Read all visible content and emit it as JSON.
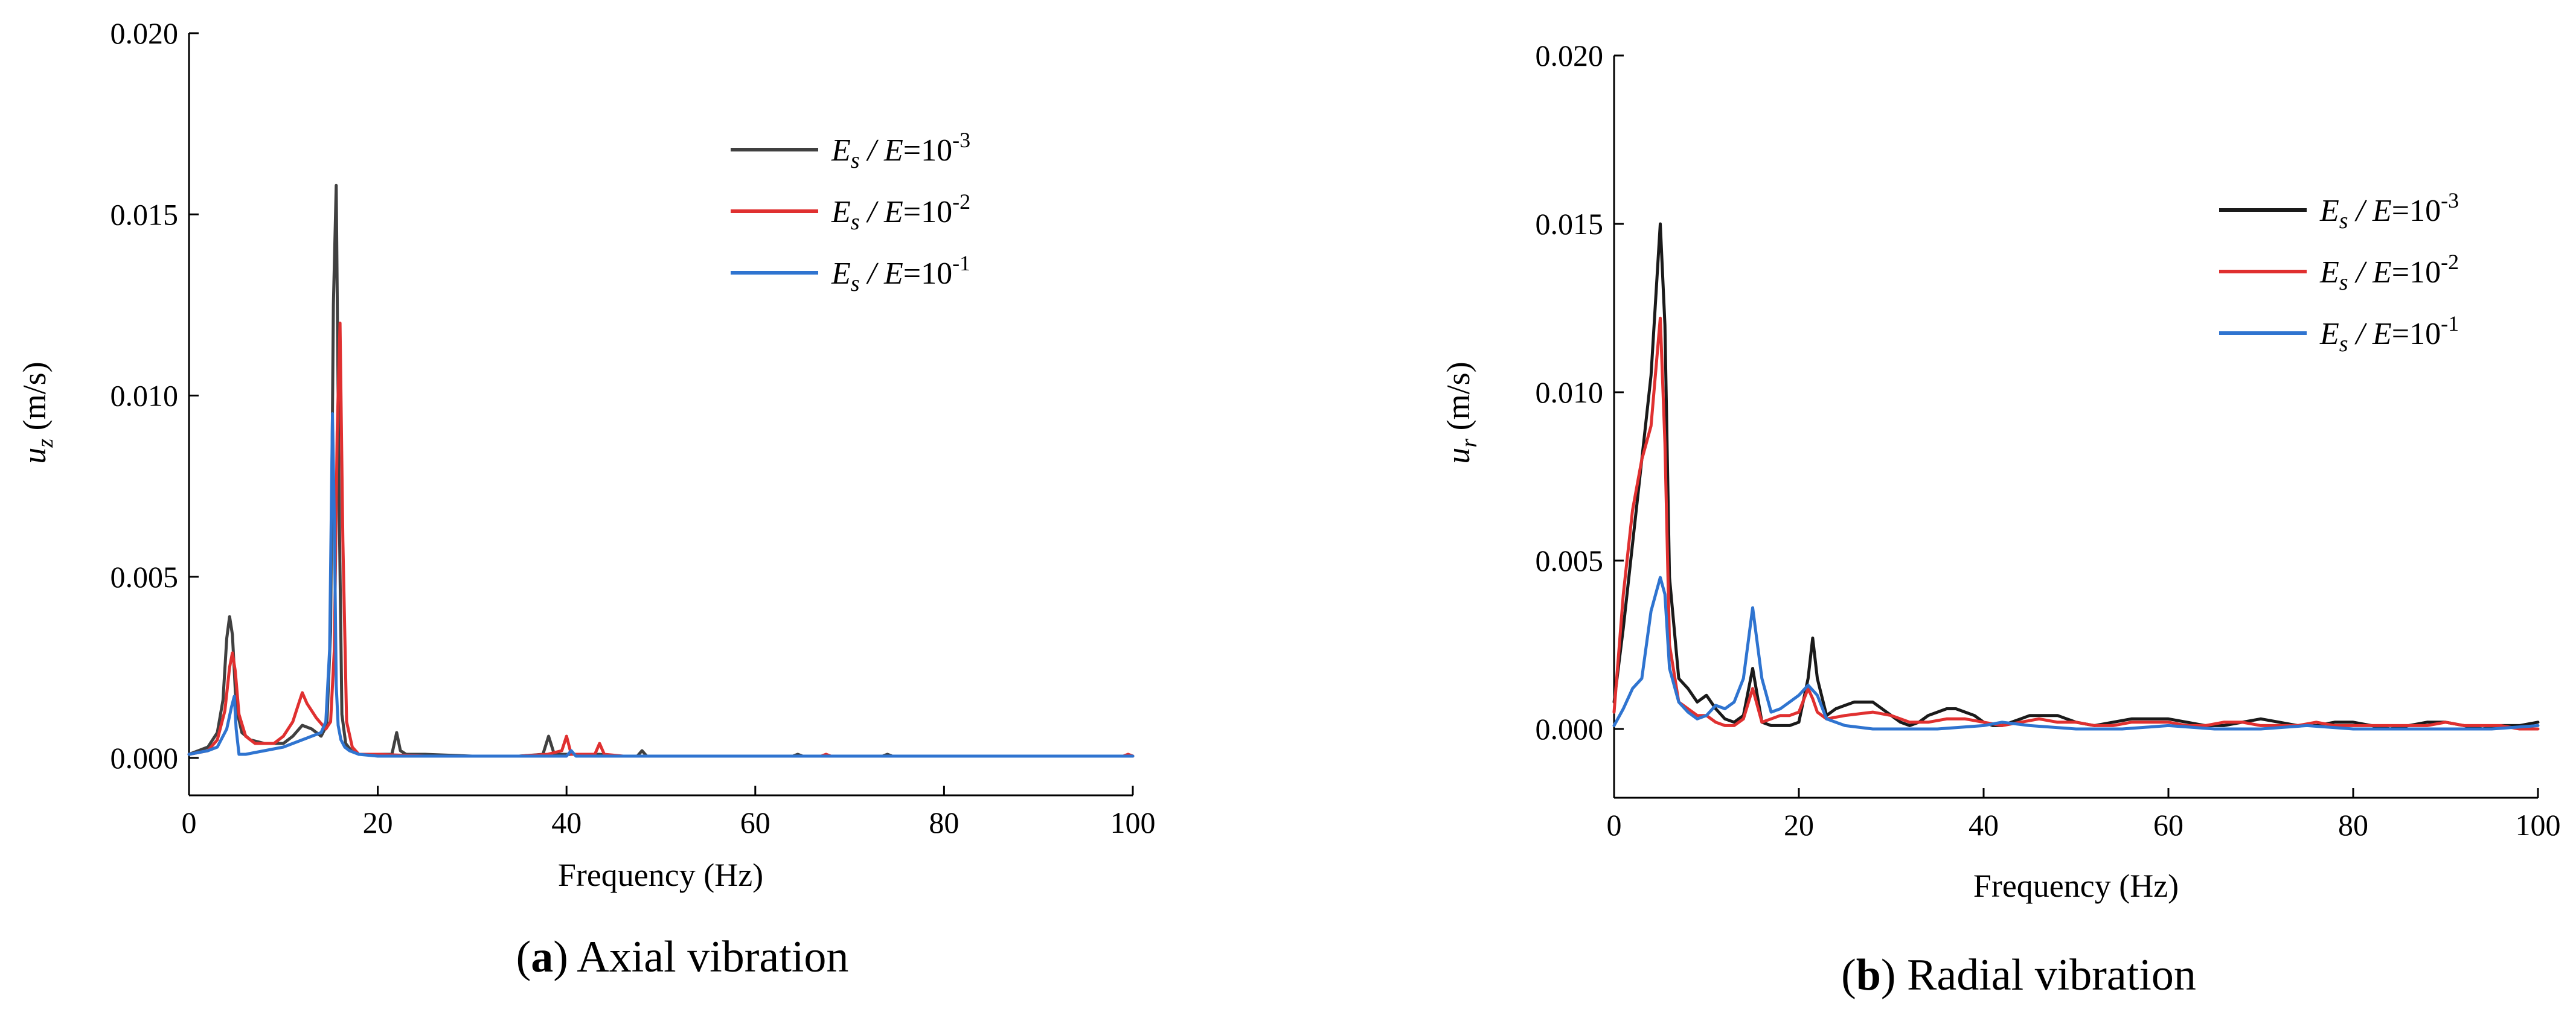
{
  "colors": {
    "black": "#1a1a1a",
    "dark": "#404040",
    "red": "#e03030",
    "blue": "#2f74d0"
  },
  "chart_data": [
    {
      "id": "a",
      "type": "line",
      "xlabel": "Frequency (Hz)",
      "ylabel": "u",
      "ylabel_sub": "z",
      "ylabel_unit": " (m/s)",
      "xlim": [
        0,
        100
      ],
      "ylim": [
        -0.0005,
        0.02
      ],
      "xticks": [
        0,
        20,
        40,
        60,
        80,
        100
      ],
      "yticks": [
        0.0,
        0.005,
        0.01,
        0.015,
        0.02
      ],
      "ytick_labels": [
        "0.000",
        "0.005",
        "0.010",
        "0.015",
        "0.020"
      ],
      "xtick_labels": [
        "0",
        "20",
        "40",
        "60",
        "80",
        "100"
      ],
      "legend_position": "top-right",
      "caption_letter": "a",
      "caption_text": " Axial vibration",
      "series": [
        {
          "name": "E_s / E=10^-3",
          "color_key": "dark",
          "legend_parts": {
            "E": "E",
            "sub": "s",
            "mid": " / ",
            "E2": "E",
            "eq": "=10",
            "exp": "-3"
          },
          "x": [
            0,
            2,
            3,
            3.6,
            4.0,
            4.3,
            4.6,
            5.0,
            5.6,
            6.5,
            8,
            10,
            11,
            12,
            13,
            14,
            14.6,
            15.0,
            15.3,
            15.6,
            15.9,
            16.2,
            16.6,
            17.2,
            18,
            19,
            20,
            21.5,
            22,
            22.4,
            23,
            25,
            30,
            35,
            37.5,
            38.1,
            38.7,
            39.5,
            40.5,
            41.5,
            43.5,
            45,
            47.5,
            48,
            48.5,
            50,
            55,
            60,
            64,
            64.5,
            65,
            70,
            73.5,
            74,
            74.5,
            80,
            90,
            95,
            100
          ],
          "y": [
            0.0001,
            0.0003,
            0.0007,
            0.0016,
            0.0033,
            0.0039,
            0.0034,
            0.0014,
            0.0007,
            0.0005,
            0.0004,
            0.0004,
            0.0006,
            0.0009,
            0.0008,
            0.0006,
            0.0009,
            0.0035,
            0.0125,
            0.0158,
            0.0072,
            0.0012,
            0.0004,
            0.0002,
            0.0001,
            0.0001,
            0.0001,
            0.0001,
            0.0007,
            0.0002,
            0.0001,
            0.0001,
            5e-05,
            5e-05,
            0.0001,
            0.0006,
            0.0001,
            0.0001,
            0.0001,
            0.0001,
            0.0001,
            5e-05,
            5e-05,
            0.0002,
            5e-05,
            5e-05,
            5e-05,
            5e-05,
            5e-05,
            0.0001,
            5e-05,
            5e-05,
            5e-05,
            0.0001,
            5e-05,
            5e-05,
            5e-05,
            5e-05,
            5e-05
          ]
        },
        {
          "name": "E_s / E=10^-2",
          "color_key": "red",
          "legend_parts": {
            "E": "E",
            "sub": "s",
            "mid": " / ",
            "E2": "E",
            "eq": "=10",
            "exp": "-2"
          },
          "x": [
            0,
            2,
            3,
            3.8,
            4.3,
            4.6,
            4.9,
            5.3,
            6,
            7,
            8,
            9,
            10,
            11,
            11.5,
            12,
            12.5,
            13.5,
            14.5,
            15.0,
            15.4,
            15.7,
            16.0,
            16.3,
            16.7,
            17.3,
            18,
            20,
            25,
            30,
            35,
            38,
            39.5,
            40.0,
            40.5,
            42,
            43.0,
            43.5,
            44,
            46,
            48,
            50,
            55,
            60,
            65,
            67,
            67.5,
            68,
            70,
            75,
            80,
            85,
            90,
            95,
            99,
            99.5,
            100
          ],
          "y": [
            0.0001,
            0.0002,
            0.0005,
            0.0013,
            0.0025,
            0.0029,
            0.0024,
            0.0012,
            0.0006,
            0.0004,
            0.0004,
            0.0004,
            0.0006,
            0.001,
            0.0014,
            0.0018,
            0.0015,
            0.0011,
            0.0008,
            0.001,
            0.003,
            0.009,
            0.012,
            0.006,
            0.001,
            0.0003,
            0.0001,
            0.0001,
            5e-05,
            5e-05,
            5e-05,
            0.0001,
            0.0002,
            0.0006,
            0.0001,
            0.0001,
            0.0001,
            0.0004,
            0.0001,
            5e-05,
            5e-05,
            5e-05,
            5e-05,
            5e-05,
            5e-05,
            5e-05,
            0.0001,
            5e-05,
            5e-05,
            5e-05,
            5e-05,
            5e-05,
            5e-05,
            5e-05,
            5e-05,
            0.0001,
            5e-05
          ]
        },
        {
          "name": "E_s / E=10^-1",
          "color_key": "blue",
          "legend_parts": {
            "E": "E",
            "sub": "s",
            "mid": " / ",
            "E2": "E",
            "eq": "=10",
            "exp": "-1"
          },
          "x": [
            0,
            2,
            3,
            4,
            4.5,
            4.8,
            5.0,
            5.3,
            6,
            8,
            10,
            11,
            12,
            13,
            14,
            14.5,
            14.9,
            15.2,
            15.4,
            15.6,
            15.8,
            16.1,
            16.5,
            17,
            18,
            20,
            25,
            30,
            35,
            40,
            40.5,
            41,
            45,
            50,
            60,
            65,
            70,
            80,
            90,
            100
          ],
          "y": [
            0.0001,
            0.0002,
            0.0003,
            0.0008,
            0.0014,
            0.0017,
            0.0008,
            0.0001,
            0.0001,
            0.0002,
            0.0003,
            0.0004,
            0.0005,
            0.0006,
            0.0007,
            0.001,
            0.003,
            0.0095,
            0.0065,
            0.002,
            0.0009,
            0.0005,
            0.0003,
            0.0002,
            0.0001,
            5e-05,
            5e-05,
            5e-05,
            5e-05,
            5e-05,
            0.0002,
            5e-05,
            5e-05,
            5e-05,
            5e-05,
            5e-05,
            5e-05,
            5e-05,
            5e-05,
            5e-05
          ]
        }
      ]
    },
    {
      "id": "b",
      "type": "line",
      "xlabel": "Frequency (Hz)",
      "ylabel": "u",
      "ylabel_sub": "r",
      "ylabel_unit": " (m/s)",
      "xlim": [
        0,
        100
      ],
      "ylim": [
        -0.0015,
        0.02
      ],
      "xticks": [
        0,
        20,
        40,
        60,
        80,
        100
      ],
      "yticks": [
        0.0,
        0.005,
        0.01,
        0.015,
        0.02
      ],
      "ytick_labels": [
        "0.000",
        "0.005",
        "0.010",
        "0.015",
        "0.020"
      ],
      "xtick_labels": [
        "0",
        "20",
        "40",
        "60",
        "80",
        "100"
      ],
      "legend_position": "top-right",
      "caption_letter": "b",
      "caption_text": " Radial vibration",
      "series": [
        {
          "name": "E_s / E=10^-3",
          "color_key": "black",
          "legend_parts": {
            "E": "E",
            "sub": "s",
            "mid": " / ",
            "E2": "E",
            "eq": "=10",
            "exp": "-3"
          },
          "x": [
            0,
            1,
            2,
            3,
            4,
            5,
            5.5,
            6,
            7,
            8,
            9,
            10,
            11,
            12,
            13,
            14,
            15,
            16,
            17,
            18,
            19,
            20,
            21,
            21.5,
            22,
            23,
            24,
            25,
            26,
            27,
            28,
            29,
            30,
            31,
            32,
            33,
            34,
            35,
            36,
            37,
            38,
            39,
            40,
            41,
            42,
            43,
            44,
            45,
            46,
            47,
            48,
            49,
            50,
            52,
            54,
            56,
            58,
            60,
            62,
            64,
            66,
            68,
            70,
            72,
            74,
            76,
            78,
            80,
            82,
            84,
            86,
            88,
            90,
            92,
            94,
            96,
            98,
            100
          ],
          "y": [
            0.0008,
            0.003,
            0.0055,
            0.008,
            0.0105,
            0.015,
            0.012,
            0.0045,
            0.0015,
            0.0012,
            0.0008,
            0.001,
            0.0006,
            0.0003,
            0.0002,
            0.0004,
            0.0018,
            0.0002,
            0.0001,
            0.0001,
            0.0001,
            0.0002,
            0.0015,
            0.0027,
            0.0015,
            0.0004,
            0.0006,
            0.0007,
            0.0008,
            0.0008,
            0.0008,
            0.0006,
            0.0004,
            0.0002,
            0.0001,
            0.0002,
            0.0004,
            0.0005,
            0.0006,
            0.0006,
            0.0005,
            0.0004,
            0.0002,
            0.0001,
            0.0001,
            0.0002,
            0.0003,
            0.0004,
            0.0004,
            0.0004,
            0.0004,
            0.0003,
            0.0002,
            0.0001,
            0.0002,
            0.0003,
            0.0003,
            0.0003,
            0.0002,
            0.0001,
            0.0001,
            0.0002,
            0.0003,
            0.0002,
            0.0001,
            0.0001,
            0.0002,
            0.0002,
            0.0001,
            0.0,
            0.0001,
            0.0002,
            0.0002,
            0.0001,
            0.0,
            0.0001,
            0.0001,
            0.0002
          ]
        },
        {
          "name": "E_s / E=10^-2",
          "color_key": "red",
          "legend_parts": {
            "E": "E",
            "sub": "s",
            "mid": " / ",
            "E2": "E",
            "eq": "=10",
            "exp": "-2"
          },
          "x": [
            0,
            1,
            2,
            3,
            4,
            5,
            5.5,
            6,
            7,
            8,
            9,
            10,
            11,
            12,
            13,
            14,
            15,
            16,
            17,
            18,
            19,
            20,
            21,
            21.5,
            22,
            23,
            25,
            28,
            30,
            32,
            34,
            36,
            38,
            40,
            42,
            44,
            46,
            48,
            50,
            52,
            54,
            56,
            58,
            60,
            62,
            64,
            66,
            68,
            70,
            72,
            74,
            76,
            78,
            80,
            82,
            84,
            86,
            88,
            90,
            92,
            94,
            96,
            98,
            100
          ],
          "y": [
            0.0005,
            0.004,
            0.0065,
            0.008,
            0.009,
            0.0122,
            0.0085,
            0.0025,
            0.0008,
            0.0006,
            0.0004,
            0.0004,
            0.0002,
            0.0001,
            0.0001,
            0.0003,
            0.0012,
            0.0002,
            0.0003,
            0.0004,
            0.0004,
            0.0005,
            0.0012,
            0.0009,
            0.0005,
            0.0003,
            0.0004,
            0.0005,
            0.0004,
            0.0002,
            0.0002,
            0.0003,
            0.0003,
            0.0002,
            0.0001,
            0.0002,
            0.0003,
            0.0002,
            0.0002,
            0.0001,
            0.0001,
            0.0002,
            0.0002,
            0.0002,
            0.0001,
            0.0001,
            0.0002,
            0.0002,
            0.0001,
            0.0001,
            0.0001,
            0.0002,
            0.0001,
            0.0001,
            0.0001,
            0.0001,
            0.0001,
            0.0001,
            0.0002,
            0.0001,
            0.0001,
            0.0001,
            0.0,
            0.0
          ]
        },
        {
          "name": "E_s / E=10^-1",
          "color_key": "blue",
          "legend_parts": {
            "E": "E",
            "sub": "s",
            "mid": " / ",
            "E2": "E",
            "eq": "=10",
            "exp": "-1"
          },
          "x": [
            0,
            1,
            2,
            3,
            4,
            5,
            5.5,
            6,
            7,
            8,
            9,
            10,
            11,
            12,
            13,
            14,
            15,
            16,
            17,
            18,
            19,
            20,
            21,
            22,
            23,
            25,
            28,
            30,
            35,
            40,
            42,
            45,
            50,
            55,
            60,
            65,
            70,
            75,
            80,
            85,
            90,
            95,
            100
          ],
          "y": [
            0.0001,
            0.0006,
            0.0012,
            0.0015,
            0.0035,
            0.0045,
            0.004,
            0.0018,
            0.0008,
            0.0005,
            0.0003,
            0.0004,
            0.0007,
            0.0006,
            0.0008,
            0.0015,
            0.0036,
            0.0015,
            0.0005,
            0.0006,
            0.0008,
            0.001,
            0.0013,
            0.001,
            0.0003,
            0.0001,
            0.0,
            0.0,
            0.0,
            0.0001,
            0.0002,
            0.0001,
            0.0,
            0.0,
            0.0001,
            0.0,
            0.0,
            0.0001,
            0.0,
            0.0,
            0.0,
            0.0,
            0.0001
          ]
        }
      ]
    }
  ]
}
